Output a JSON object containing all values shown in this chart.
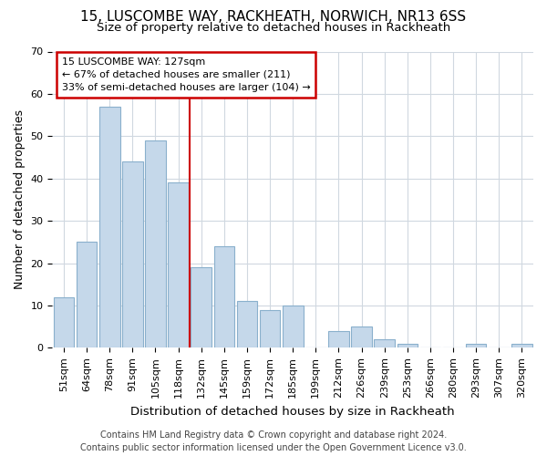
{
  "title1": "15, LUSCOMBE WAY, RACKHEATH, NORWICH, NR13 6SS",
  "title2": "Size of property relative to detached houses in Rackheath",
  "xlabel": "Distribution of detached houses by size in Rackheath",
  "ylabel": "Number of detached properties",
  "categories": [
    "51sqm",
    "64sqm",
    "78sqm",
    "91sqm",
    "105sqm",
    "118sqm",
    "132sqm",
    "145sqm",
    "159sqm",
    "172sqm",
    "185sqm",
    "199sqm",
    "212sqm",
    "226sqm",
    "239sqm",
    "253sqm",
    "266sqm",
    "280sqm",
    "293sqm",
    "307sqm",
    "320sqm"
  ],
  "values": [
    12,
    25,
    57,
    44,
    49,
    39,
    19,
    24,
    11,
    9,
    10,
    0,
    4,
    5,
    2,
    1,
    0,
    0,
    1,
    0,
    1
  ],
  "bar_color": "#c5d8ea",
  "bar_edge_color": "#8ab0cc",
  "vline_pos": 5.5,
  "vline_color": "#cc0000",
  "annotation_line1": "15 LUSCOMBE WAY: 127sqm",
  "annotation_line2": "← 67% of detached houses are smaller (211)",
  "annotation_line3": "33% of semi-detached houses are larger (104) →",
  "annotation_box_facecolor": "#ffffff",
  "annotation_box_edgecolor": "#cc0000",
  "ylim": [
    0,
    70
  ],
  "yticks": [
    0,
    10,
    20,
    30,
    40,
    50,
    60,
    70
  ],
  "fig_bg_color": "#ffffff",
  "plot_bg_color": "#ffffff",
  "grid_color": "#d0d8e0",
  "title1_fontsize": 11,
  "title2_fontsize": 9.5,
  "ylabel_fontsize": 9,
  "xlabel_fontsize": 9.5,
  "tick_fontsize": 8,
  "annot_fontsize": 8,
  "footer_fontsize": 7,
  "footer": "Contains HM Land Registry data © Crown copyright and database right 2024.\nContains public sector information licensed under the Open Government Licence v3.0."
}
